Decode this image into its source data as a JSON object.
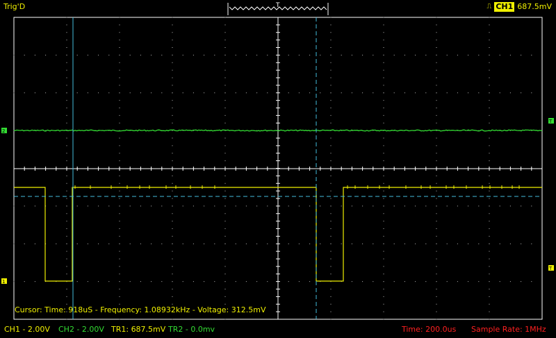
{
  "header": {
    "trigger_status": "Trig'D",
    "trigger_channel": "CH1",
    "trigger_level": "687.5mV",
    "trigger_edge_icon": "rising-edge-icon"
  },
  "cursor_readout": "Cursor: Time: 918uS - Frequency: 1.08932kHz - Voltage: 312.5mV",
  "status_bar": {
    "ch1": "CH1 - 2.00V",
    "ch2": "CH2 - 2.00V",
    "tr1": "TR1: 687.5mV",
    "tr2": "TR2 - 0.0mv",
    "time": "Time: 200.0us",
    "sample_rate": "Sample Rate: 1MHz"
  },
  "colors": {
    "ch1": "#f0f000",
    "ch2": "#33dd33",
    "cursor": "#44bbdd",
    "grid": "#ffffff",
    "status_red": "#ff2020"
  }
}
